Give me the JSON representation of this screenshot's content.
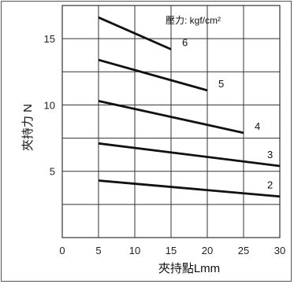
{
  "chart_data": {
    "type": "line",
    "title": "",
    "legend_title": "壓力: kgf/cm²",
    "xlabel": "夾持點Lmm",
    "ylabel": "夾持力 N",
    "xlim": [
      0,
      30
    ],
    "ylim": [
      0,
      17.5
    ],
    "x_ticks": [
      0,
      5,
      10,
      15,
      20,
      25,
      30
    ],
    "y_ticks": [
      5,
      10,
      15
    ],
    "grid": true,
    "series": [
      {
        "name": "6",
        "x": [
          5,
          15
        ],
        "y": [
          16.6,
          14.2
        ]
      },
      {
        "name": "5",
        "x": [
          5,
          20
        ],
        "y": [
          13.4,
          11.1
        ]
      },
      {
        "name": "4",
        "x": [
          5,
          25
        ],
        "y": [
          10.3,
          7.9
        ]
      },
      {
        "name": "3",
        "x": [
          5,
          30
        ],
        "y": [
          7.1,
          5.4
        ]
      },
      {
        "name": "2",
        "x": [
          5,
          30
        ],
        "y": [
          4.3,
          3.1
        ]
      }
    ]
  }
}
